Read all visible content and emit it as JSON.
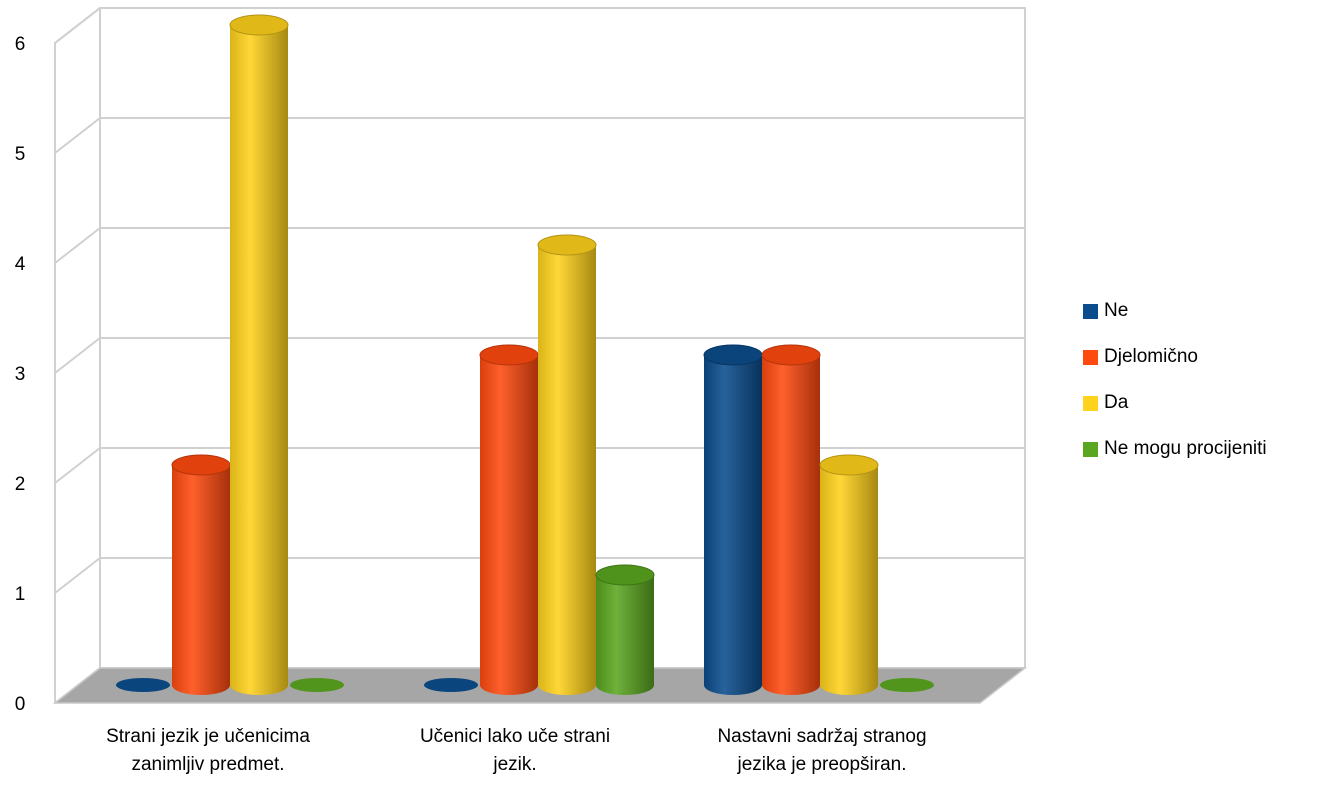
{
  "chart_data": {
    "type": "bar",
    "style": "3d-cylinder",
    "categories": [
      [
        "Strani jezik je učenicima",
        "zanimljiv predmet."
      ],
      [
        "Učenici lako uče strani",
        "jezik."
      ],
      [
        "Nastavni sadržaj stranog",
        "jezika je preopširan."
      ]
    ],
    "series": [
      {
        "name": "Ne",
        "color": "#0b4d8c",
        "values": [
          0,
          0,
          3
        ]
      },
      {
        "name": "Djelomično",
        "color": "#ff4a0f",
        "values": [
          2,
          3,
          3
        ]
      },
      {
        "name": "Da",
        "color": "#ffd21c",
        "values": [
          6,
          4,
          2
        ]
      },
      {
        "name": "Ne mogu procijeniti",
        "color": "#5aa620",
        "values": [
          0,
          1,
          0
        ]
      }
    ],
    "ylim": [
      0,
      6
    ],
    "yticks": [
      "0",
      "1",
      "2",
      "3",
      "4",
      "5",
      "6"
    ],
    "grid": true,
    "legend_position": "right",
    "floor_color": "#a6a6a6"
  }
}
